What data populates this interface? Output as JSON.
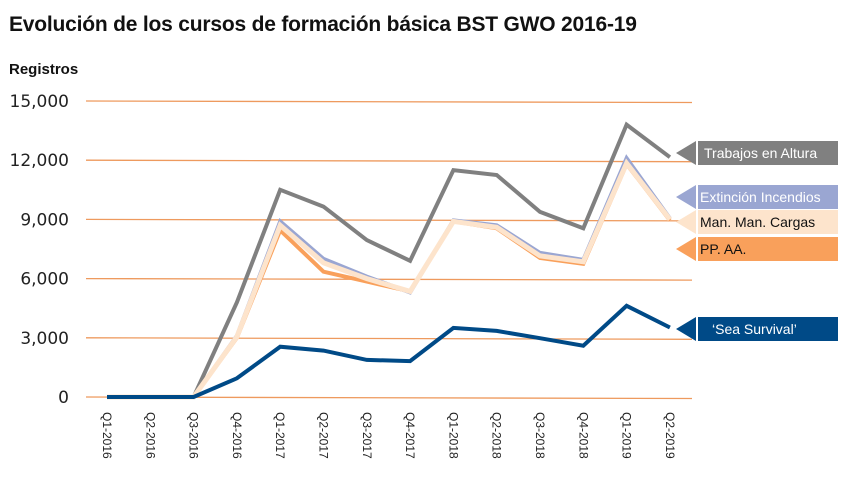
{
  "header": {
    "title": "Evolución de los cursos de formación básica BST GWO 2016-19",
    "y_axis_label": "Registros"
  },
  "axis": {
    "y_ticks": [
      "15,000",
      "12,000",
      "9,000",
      "6,000",
      "3,000",
      "0"
    ],
    "x_ticks": [
      "Q1-2016",
      "Q2-2016",
      "Q3-2016",
      "Q4-2016",
      "Q1-2017",
      "Q2-2017",
      "Q3-2017",
      "Q4-2017",
      "Q1-2018",
      "Q2-2018",
      "Q3-2018",
      "Q4-2018",
      "Q1-2019",
      "Q2-2019"
    ]
  },
  "legend": {
    "trabajos": "Trabajos en Altura",
    "extincion": "Extinción Incendios",
    "cargas": "Man. Man. Cargas",
    "ppaa": "PP. AA.",
    "sea": "‘Sea Survival’"
  },
  "colors": {
    "gridline": "#ee9a5e",
    "trabajos": "#808080",
    "extincion": "#9aa6d2",
    "cargas": "#fde4cc",
    "ppaa": "#f9a05b",
    "sea": "#004a87"
  },
  "chart_data": {
    "type": "line",
    "title": "Evolución de los cursos de formación básica BST GWO 2016-19",
    "xlabel": "",
    "ylabel": "Registros",
    "ylim": [
      0,
      15000
    ],
    "yticks": [
      0,
      3000,
      6000,
      9000,
      12000,
      15000
    ],
    "grid": true,
    "legend_position": "right (direct labels at line ends)",
    "categories": [
      "Q1-2016",
      "Q2-2016",
      "Q3-2016",
      "Q4-2016",
      "Q1-2017",
      "Q2-2017",
      "Q3-2017",
      "Q4-2017",
      "Q1-2018",
      "Q2-2018",
      "Q3-2018",
      "Q4-2018",
      "Q1-2019",
      "Q2-2019"
    ],
    "series": [
      {
        "name": "Trabajos en Altura",
        "color": "#808080",
        "values": [
          0,
          0,
          0,
          4800,
          10500,
          9650,
          7950,
          6900,
          11500,
          11250,
          9380,
          8550,
          13800,
          12150
        ]
      },
      {
        "name": "Extinción Incendios",
        "color": "#9aa6d2",
        "values": [
          0,
          0,
          0,
          3100,
          8900,
          7000,
          6100,
          5300,
          8950,
          8700,
          7300,
          6950,
          12100,
          9050
        ]
      },
      {
        "name": "Man. Man. Cargas",
        "color": "#fde4cc",
        "values": [
          0,
          0,
          0,
          3050,
          8700,
          6800,
          6000,
          5350,
          8900,
          8600,
          7150,
          6850,
          11850,
          9000
        ]
      },
      {
        "name": "PP. AA.",
        "color": "#f9a05b",
        "values": [
          0,
          0,
          0,
          3000,
          8450,
          6350,
          5850,
          5350,
          8900,
          8550,
          7050,
          6750,
          11800,
          8950
        ]
      },
      {
        "name": "‘Sea Survival’",
        "color": "#004a87",
        "values": [
          0,
          0,
          0,
          950,
          2550,
          2350,
          1880,
          1820,
          3500,
          3350,
          2980,
          2600,
          4620,
          3520
        ]
      }
    ]
  }
}
